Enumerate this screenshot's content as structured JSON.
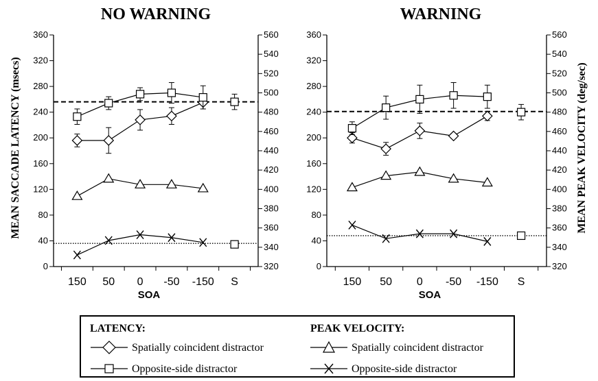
{
  "left_axis_label": "MEAN SACCADE LATENCY (msecs)",
  "right_axis_label": "MEAN PEAK VELOCITY (deg/sec)",
  "legend": {
    "latency_heading": "LATENCY:",
    "velocity_heading": "PEAK VELOCITY:",
    "latency_coincident": "Spatially coincident distractor",
    "latency_opposite": "Opposite-side distractor",
    "velocity_coincident": "Spatially coincident distractor",
    "velocity_opposite": "Opposite-side distractor"
  },
  "chart_data": [
    {
      "type": "line",
      "title": "NO WARNING",
      "xlabel": "SOA",
      "categories": [
        "150",
        "50",
        "0",
        "-50",
        "-150",
        "S"
      ],
      "ylabel": "MEAN SACCADE LATENCY (msecs)",
      "ylim": [
        0,
        360
      ],
      "yticks": [
        0,
        40,
        80,
        120,
        160,
        200,
        240,
        280,
        320,
        360
      ],
      "y2label": "MEAN PEAK VELOCITY (deg/sec)",
      "y2lim": [
        320,
        560
      ],
      "y2ticks": [
        320,
        340,
        360,
        380,
        400,
        420,
        440,
        460,
        480,
        500,
        520,
        540,
        560
      ],
      "series": [
        {
          "name": "LATENCY: Spatially coincident distractor",
          "axis": "left",
          "marker": "diamond",
          "values": [
            196,
            196,
            228,
            234,
            255,
            null
          ],
          "errors": [
            10,
            20,
            16,
            13,
            10,
            null
          ]
        },
        {
          "name": "LATENCY: Opposite-side distractor",
          "axis": "left",
          "marker": "square",
          "values": [
            233,
            254,
            268,
            270,
            263,
            256
          ],
          "errors": [
            12,
            10,
            10,
            16,
            18,
            12
          ]
        },
        {
          "name": "PEAK VELOCITY: Spatially coincident distractor",
          "axis": "right",
          "marker": "triangle",
          "values": [
            393,
            411,
            405,
            405,
            401,
            null
          ]
        },
        {
          "name": "PEAK VELOCITY: Opposite-side distractor",
          "axis": "right",
          "marker": "x",
          "values": [
            332,
            347,
            353,
            350,
            345,
            null
          ]
        },
        {
          "name": "PEAK VELOCITY: Opposite-side distractor",
          "axis": "right",
          "marker": "square",
          "values": [
            null,
            null,
            null,
            null,
            null,
            343
          ]
        }
      ],
      "reference_lines": [
        {
          "axis": "left",
          "value": 256,
          "style": "dashed"
        },
        {
          "axis": "left",
          "value": 36,
          "style": "dotted"
        }
      ]
    },
    {
      "type": "line",
      "title": "WARNING",
      "xlabel": "SOA",
      "categories": [
        "150",
        "50",
        "0",
        "-50",
        "-150",
        "S"
      ],
      "ylabel": "MEAN SACCADE LATENCY (msecs)",
      "ylim": [
        0,
        360
      ],
      "yticks": [
        0,
        40,
        80,
        120,
        160,
        200,
        240,
        280,
        320,
        360
      ],
      "y2label": "MEAN PEAK VELOCITY (deg/sec)",
      "y2lim": [
        320,
        560
      ],
      "y2ticks": [
        320,
        340,
        360,
        380,
        400,
        420,
        440,
        460,
        480,
        500,
        520,
        540,
        560
      ],
      "series": [
        {
          "name": "LATENCY: Spatially coincident distractor",
          "axis": "left",
          "marker": "diamond",
          "values": [
            200,
            183,
            211,
            203,
            234,
            null
          ],
          "errors": [
            8,
            10,
            12,
            4,
            7,
            null
          ]
        },
        {
          "name": "LATENCY: Opposite-side distractor",
          "axis": "left",
          "marker": "square",
          "values": [
            215,
            247,
            260,
            266,
            264,
            240
          ],
          "errors": [
            10,
            18,
            22,
            20,
            18,
            12
          ]
        },
        {
          "name": "PEAK VELOCITY: Spatially coincident distractor",
          "axis": "right",
          "marker": "triangle",
          "values": [
            402,
            414,
            418,
            411,
            407,
            null
          ]
        },
        {
          "name": "PEAK VELOCITY: Opposite-side distractor",
          "axis": "right",
          "marker": "x",
          "values": [
            363,
            349,
            354,
            354,
            346,
            null
          ]
        },
        {
          "name": "PEAK VELOCITY: Opposite-side distractor",
          "axis": "right",
          "marker": "square",
          "values": [
            null,
            null,
            null,
            null,
            null,
            352
          ]
        }
      ],
      "reference_lines": [
        {
          "axis": "left",
          "value": 241,
          "style": "dashed"
        },
        {
          "axis": "left",
          "value": 48,
          "style": "dotted"
        }
      ]
    }
  ]
}
